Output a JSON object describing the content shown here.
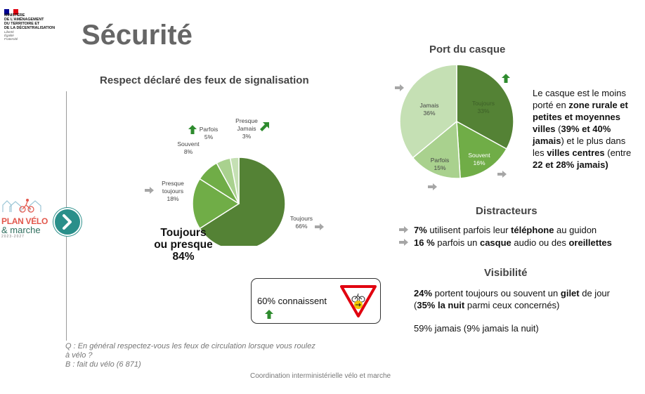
{
  "ministry": {
    "lines": [
      "MINISTÈRE",
      "DE L'AMÉNAGEMENT",
      "DU TERRITOIRE ET",
      "DE LA DÉCENTRALISATION"
    ],
    "motto": [
      "Liberté",
      "Égalité",
      "Fraternité"
    ]
  },
  "page_title": "Sécurité",
  "logo": {
    "line1": "PLAN VÉLO",
    "line2": "& marche",
    "years": "2023-2027"
  },
  "colors": {
    "dark_green": "#548235",
    "mid_green": "#70ad47",
    "light_green": "#a9d18e",
    "pale_green": "#c5e0b4",
    "up_arrow": "#2e8b2e",
    "gray_arrow": "#a6a6a6"
  },
  "chart_data": [
    {
      "type": "pie",
      "title": "Respect déclaré des feux de signalisation",
      "slices": [
        {
          "name": "Toujours",
          "value": 66,
          "label": "66%",
          "trend": "stable"
        },
        {
          "name": "Presque toujours",
          "value": 18,
          "label": "18%",
          "trend": "stable"
        },
        {
          "name": "Souvent",
          "value": 8,
          "label": "8%",
          "trend": "none"
        },
        {
          "name": "Parfois",
          "value": 5,
          "label": "5%",
          "trend": "up"
        },
        {
          "name": "Presque Jamais",
          "value": 3,
          "label": "3%",
          "trend": "up"
        }
      ],
      "total_label": [
        "Toujours",
        "ou presque",
        "84%"
      ]
    },
    {
      "type": "pie",
      "title": "Port du casque",
      "slices": [
        {
          "name": "Toujours",
          "value": 33,
          "label": "33%",
          "trend": "up"
        },
        {
          "name": "Souvent",
          "value": 16,
          "label": "16%",
          "trend": "stable"
        },
        {
          "name": "Parfois",
          "value": 15,
          "label": "15%",
          "trend": "stable"
        },
        {
          "name": "Jamais",
          "value": 36,
          "label": "36%",
          "trend": "stable"
        }
      ]
    }
  ],
  "signal_box": {
    "text": "60% connaissent",
    "trend": "up"
  },
  "helmet_note": {
    "l1": "Le casque est le moins",
    "l2a": "porté en ",
    "l2b": "zone rurale et",
    "l3": "petites et moyennes",
    "l4a": "villes",
    "l4b": " (",
    "l4c": "39% et 40%",
    "l5a": "jamais",
    "l5b": ") et le plus dans",
    "l6a": "les ",
    "l6b": "villes centres",
    "l6c": " (entre",
    "l7": "22 et 28% jamais)"
  },
  "distractors": {
    "title": "Distracteurs",
    "item1": {
      "pct": "7%",
      "t1": " utilisent parfois leur ",
      "b1": "téléphone",
      "t2": " au guidon"
    },
    "item2": {
      "pct": "16 %",
      "t1": " parfois un ",
      "b1": "casque",
      "t2": " audio ou des ",
      "b2": "oreillettes"
    }
  },
  "visibility": {
    "title": "Visibilité",
    "l1a": "24%",
    "l1b": " portent toujours ou souvent un ",
    "l1c": "gilet",
    "l1d": " de jour",
    "l2a": "(",
    "l2b": "35% la nuit",
    "l2c": " parmi ceux concernés)",
    "l3": "59% jamais (9% jamais la nuit)"
  },
  "footnote": {
    "q": "Q : En général respectez-vous les feux de circulation lorsque vous roulez à vélo ?",
    "b": "B : fait du vélo (6 871)"
  },
  "footer": "Coordination interministérielle vélo et marche"
}
